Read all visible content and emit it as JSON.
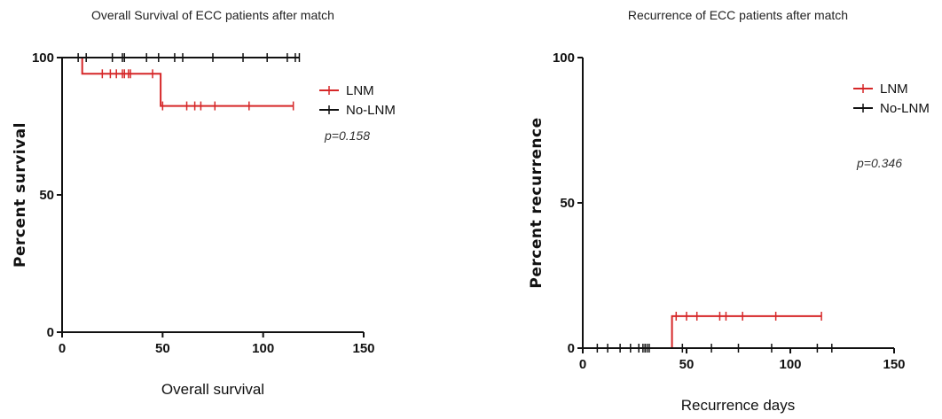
{
  "chart_data": [
    {
      "type": "line",
      "subtype": "kaplan-meier-step",
      "title": "Overall Survival of ECC patients after match",
      "xlabel": "Overall survival",
      "ylabel": "Percent survival",
      "xlim": [
        0,
        150
      ],
      "ylim": [
        0,
        100
      ],
      "x_ticks": [
        0,
        50,
        100,
        150
      ],
      "y_ticks": [
        0,
        50,
        100
      ],
      "x_tick_labels": [
        "0",
        "50",
        "100",
        "150"
      ],
      "y_tick_labels": [
        "0",
        "50",
        "100"
      ],
      "annotation": "p=0.158",
      "legend_position": "top-right",
      "grid": false,
      "series": [
        {
          "name": "LNM",
          "color": "#d62728",
          "steps": [
            [
              0,
              100
            ],
            [
              10,
              100
            ],
            [
              10,
              94.1
            ],
            [
              49,
              94.1
            ],
            [
              49,
              82.4
            ],
            [
              115,
              82.4
            ]
          ],
          "censored": [
            [
              20,
              94.1
            ],
            [
              24,
              94.1
            ],
            [
              27,
              94.1
            ],
            [
              30,
              94.1
            ],
            [
              31,
              94.1
            ],
            [
              33,
              94.1
            ],
            [
              34,
              94.1
            ],
            [
              45,
              94.1
            ],
            [
              50,
              82.4
            ],
            [
              62,
              82.4
            ],
            [
              66,
              82.4
            ],
            [
              69,
              82.4
            ],
            [
              76,
              82.4
            ],
            [
              93,
              82.4
            ],
            [
              115,
              82.4
            ]
          ]
        },
        {
          "name": "No-LNM",
          "color": "#111111",
          "steps": [
            [
              0,
              100
            ],
            [
              118,
              100
            ]
          ],
          "censored": [
            [
              8,
              100
            ],
            [
              12,
              100
            ],
            [
              25,
              100
            ],
            [
              30,
              100
            ],
            [
              31,
              100
            ],
            [
              42,
              100
            ],
            [
              48,
              100
            ],
            [
              56,
              100
            ],
            [
              60,
              100
            ],
            [
              75,
              100
            ],
            [
              90,
              100
            ],
            [
              102,
              100
            ],
            [
              112,
              100
            ],
            [
              116,
              100
            ],
            [
              118,
              100
            ]
          ]
        }
      ]
    },
    {
      "type": "line",
      "subtype": "kaplan-meier-step",
      "title": "Recurrence of ECC patients after match",
      "xlabel": "Recurrence days",
      "ylabel": "Percent recurrence",
      "xlim": [
        0,
        150
      ],
      "ylim": [
        0,
        100
      ],
      "x_ticks": [
        0,
        50,
        100,
        150
      ],
      "y_ticks": [
        0,
        50,
        100
      ],
      "x_tick_labels": [
        "0",
        "50",
        "100",
        "150"
      ],
      "y_tick_labels": [
        "0",
        "50",
        "100"
      ],
      "annotation": "p=0.346",
      "legend_position": "top-right",
      "grid": false,
      "series": [
        {
          "name": "LNM",
          "color": "#d62728",
          "steps": [
            [
              0,
              0
            ],
            [
              43,
              0
            ],
            [
              43,
              11
            ],
            [
              115,
              11
            ]
          ],
          "censored": [
            [
              45,
              11
            ],
            [
              50,
              11
            ],
            [
              55,
              11
            ],
            [
              66,
              11
            ],
            [
              69,
              11
            ],
            [
              77,
              11
            ],
            [
              93,
              11
            ],
            [
              115,
              11
            ]
          ]
        },
        {
          "name": "No-LNM",
          "color": "#111111",
          "steps": [
            [
              0,
              0
            ],
            [
              120,
              0
            ]
          ],
          "censored": [
            [
              7,
              0
            ],
            [
              12,
              0
            ],
            [
              18,
              0
            ],
            [
              23,
              0
            ],
            [
              27,
              0
            ],
            [
              29,
              0
            ],
            [
              30,
              0
            ],
            [
              31,
              0
            ],
            [
              32,
              0
            ],
            [
              48,
              0
            ],
            [
              62,
              0
            ],
            [
              75,
              0
            ],
            [
              91,
              0
            ],
            [
              113,
              0
            ],
            [
              120,
              0
            ]
          ]
        }
      ]
    }
  ]
}
